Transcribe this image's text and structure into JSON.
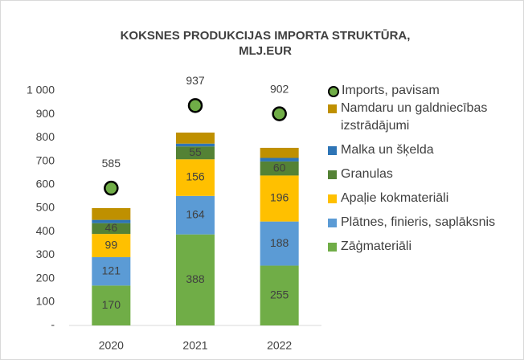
{
  "chart_data": {
    "type": "bar",
    "stacked": true,
    "title": [
      "KOKSNES PRODUKCIJAS IMPORTA STRUKTŪRA,",
      "MLJ.EUR"
    ],
    "categories": [
      "2020",
      "2021",
      "2022"
    ],
    "series": [
      {
        "name": "Zāģmateriāli",
        "color": "#70ad47",
        "values": [
          170,
          388,
          255
        ],
        "value_labels": [
          "170",
          "388",
          "255"
        ]
      },
      {
        "name": "Plātnes, finieris, saplāksnis",
        "color": "#5b9bd5",
        "values": [
          121,
          164,
          188
        ],
        "value_labels": [
          "121",
          "164",
          "188"
        ]
      },
      {
        "name": "Apaļie kokmateriāli",
        "color": "#ffc000",
        "values": [
          99,
          156,
          196
        ],
        "value_labels": [
          "99",
          "156",
          "196"
        ]
      },
      {
        "name": "Granulas",
        "color": "#548235",
        "values": [
          46,
          55,
          60
        ],
        "value_labels": [
          "46",
          "55",
          "60"
        ]
      },
      {
        "name": "Malka un šķelda",
        "color": "#2e75b6",
        "values": [
          14,
          12,
          15
        ]
      },
      {
        "name": "Namdaru un galdniecības izstrādājumi",
        "color": "#bf9000",
        "values": [
          50,
          47,
          43
        ]
      },
      {
        "name": "Imports, pavisam",
        "type": "scatter",
        "color": "#70ad47",
        "values": [
          585,
          937,
          902
        ],
        "value_labels": [
          "585",
          "937",
          "902"
        ]
      }
    ],
    "ylim": [
      0,
      1000
    ],
    "yticks": [
      {
        "value": 0,
        "label": "-"
      },
      100,
      200,
      300,
      400,
      500,
      600,
      700,
      800,
      900,
      {
        "value": 1000,
        "label": "1 000"
      }
    ],
    "legend": "right"
  }
}
